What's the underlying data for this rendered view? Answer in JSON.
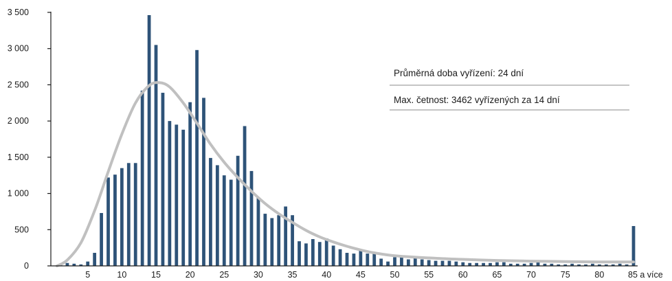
{
  "chart_data": {
    "type": "bar",
    "title": "",
    "xlabel": "",
    "ylabel": "",
    "ylim": [
      0,
      3500
    ],
    "y_ticks": [
      0,
      500,
      1000,
      1500,
      2000,
      2500,
      3000,
      3500
    ],
    "y_tick_labels": [
      "0",
      "500",
      "1 000",
      "1 500",
      "2 000",
      "2 500",
      "3 000",
      "3 500"
    ],
    "x_tick_values": [
      5,
      10,
      15,
      20,
      25,
      30,
      35,
      40,
      45,
      50,
      55,
      60,
      65,
      70,
      75,
      80,
      85
    ],
    "x_tick_labels": [
      "5",
      "10",
      "15",
      "20",
      "25",
      "30",
      "35",
      "40",
      "45",
      "50",
      "55",
      "60",
      "65",
      "70",
      "75",
      "80",
      "85 a více"
    ],
    "x": [
      1,
      2,
      3,
      4,
      5,
      6,
      7,
      8,
      9,
      10,
      11,
      12,
      13,
      14,
      15,
      16,
      17,
      18,
      19,
      20,
      21,
      22,
      23,
      24,
      25,
      26,
      27,
      28,
      29,
      30,
      31,
      32,
      33,
      34,
      35,
      36,
      37,
      38,
      39,
      40,
      41,
      42,
      43,
      44,
      45,
      46,
      47,
      48,
      49,
      50,
      51,
      52,
      53,
      54,
      55,
      56,
      57,
      58,
      59,
      60,
      61,
      62,
      63,
      64,
      65,
      66,
      67,
      68,
      69,
      70,
      71,
      72,
      73,
      74,
      75,
      76,
      77,
      78,
      79,
      80,
      81,
      82,
      83,
      84,
      85
    ],
    "values": [
      20,
      40,
      30,
      20,
      60,
      180,
      730,
      1220,
      1260,
      1350,
      1420,
      1420,
      2420,
      3462,
      3050,
      2390,
      2000,
      1950,
      1880,
      2260,
      2980,
      2320,
      1490,
      1390,
      1250,
      1190,
      1520,
      1930,
      1310,
      940,
      720,
      660,
      700,
      820,
      700,
      340,
      310,
      370,
      330,
      380,
      280,
      230,
      180,
      170,
      220,
      170,
      170,
      100,
      60,
      120,
      120,
      90,
      110,
      90,
      80,
      70,
      70,
      70,
      60,
      50,
      40,
      40,
      40,
      40,
      50,
      50,
      30,
      30,
      30,
      40,
      60,
      30,
      30,
      20,
      20,
      30,
      20,
      20,
      30,
      20,
      20,
      20,
      30,
      20,
      550
    ],
    "series": [
      {
        "name": "",
        "type": "bar",
        "color": "#2e5378"
      },
      {
        "name": "",
        "type": "line",
        "color": "#c0c0c0",
        "x": [
          0.5,
          2,
          4,
          6,
          8,
          10,
          12,
          14,
          15.5,
          17,
          19,
          21,
          23,
          25,
          27,
          29,
          31,
          33,
          35,
          37,
          39,
          41,
          43,
          45,
          47,
          50,
          55,
          60,
          65,
          70,
          75,
          80,
          85
        ],
        "y": [
          0,
          80,
          320,
          760,
          1300,
          1820,
          2250,
          2490,
          2530,
          2470,
          2250,
          1970,
          1680,
          1430,
          1220,
          1030,
          860,
          720,
          600,
          490,
          400,
          330,
          270,
          220,
          180,
          140,
          110,
          90,
          75,
          65,
          60,
          55,
          55
        ]
      }
    ],
    "annotations": [
      "Průměrná doba vyřízení: 24 dní",
      "Max. četnost: 3462 vyřízených za 14 dní"
    ],
    "grid": false,
    "legend": "none"
  }
}
